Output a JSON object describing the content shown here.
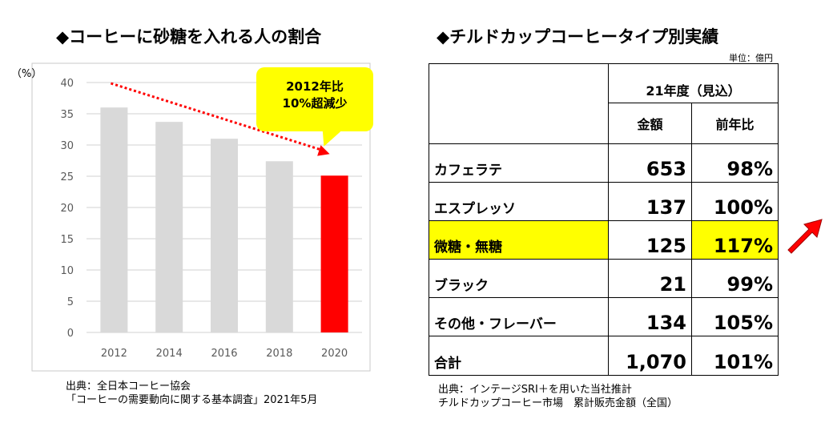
{
  "left_title": "◆コーヒーに砂糖を入れる人の割合",
  "right_title": "◆チルドカップコーヒータイプ別実績",
  "chart_data": {
    "type": "bar",
    "categories": [
      "2012",
      "2014",
      "2016",
      "2018",
      "2020"
    ],
    "values": [
      36,
      33.7,
      31,
      27.4,
      25.1
    ],
    "bar_colors": [
      "#d9d9d9",
      "#d9d9d9",
      "#d9d9d9",
      "#d9d9d9",
      "#ff0000"
    ],
    "ylim": [
      0,
      40
    ],
    "yticks": [
      "0",
      "5",
      "10",
      "15",
      "20",
      "25",
      "30",
      "35",
      "40"
    ],
    "ylabel": "（%）",
    "grid": true,
    "trend_color": "#ff0000",
    "annotation": {
      "line1": "2012年比",
      "line2": "10%超減少",
      "color": "#ffff00"
    }
  },
  "left_source": {
    "line1": "出典：全日本コーヒー協会",
    "line2": "「コーヒーの需要動向に関する基本調査」2021年5月"
  },
  "table": {
    "unit": "単位：億円",
    "group_header": "21年度（見込）",
    "col_amount": "金額",
    "col_yoy": "前年比",
    "rows": [
      {
        "label": "カフェラテ",
        "amount": "653",
        "yoy": "98%"
      },
      {
        "label": "エスプレッソ",
        "amount": "137",
        "yoy": "100%"
      },
      {
        "label": "微糖・無糖",
        "amount": "125",
        "yoy": "117%"
      },
      {
        "label": "ブラック",
        "amount": "21",
        "yoy": "99%"
      },
      {
        "label": "その他・フレーバー",
        "amount": "134",
        "yoy": "105%"
      },
      {
        "label": "合計",
        "amount": "1,070",
        "yoy": "101%"
      }
    ],
    "highlight_color": "#ffff00"
  },
  "right_source": {
    "line1": "出典：インテージSRI＋を用いた当社推計",
    "line2": "チルドカップコーヒー市場　累計販売金額（全国）"
  },
  "arrow_icon": "red-up-right-arrow-icon"
}
